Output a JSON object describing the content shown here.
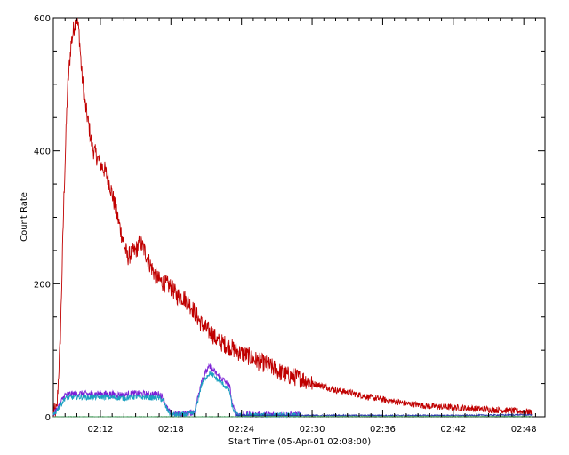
{
  "chart_data": {
    "type": "line",
    "title": "",
    "xlabel": "Start Time (05-Apr-01 02:08:00)",
    "ylabel": "Count Rate",
    "x_unit": "minutes past 02:08:00",
    "xlim": [
      0,
      41.8
    ],
    "ylim": [
      0,
      600
    ],
    "x_ticks": [
      {
        "value": 4,
        "label": "02:12"
      },
      {
        "value": 10,
        "label": "02:18"
      },
      {
        "value": 16,
        "label": "02:24"
      },
      {
        "value": 22,
        "label": "02:30"
      },
      {
        "value": 28,
        "label": "02:36"
      },
      {
        "value": 34,
        "label": "02:42"
      },
      {
        "value": 40,
        "label": "02:48"
      }
    ],
    "y_ticks": [
      {
        "value": 0,
        "label": "0"
      },
      {
        "value": 200,
        "label": "200"
      },
      {
        "value": 400,
        "label": "400"
      },
      {
        "value": 600,
        "label": "600"
      }
    ],
    "grid": false,
    "legend": "none",
    "series": [
      {
        "color": "#c00000",
        "noise": 14,
        "x": [
          0,
          0.3,
          0.6,
          0.9,
          1.2,
          1.5,
          1.8,
          2.0,
          2.2,
          2.4,
          2.7,
          3.0,
          3.3,
          3.6,
          4.0,
          4.4,
          4.8,
          5.2,
          5.6,
          6.0,
          6.3,
          6.6,
          7.0,
          7.4,
          7.8,
          8.2,
          8.6,
          9.0,
          9.5,
          10.0,
          10.5,
          11.0,
          11.5,
          12.0,
          12.5,
          13.0,
          13.5,
          14.0,
          14.5,
          15.0,
          15.5,
          16.0,
          16.5,
          17.0,
          17.5,
          18.0,
          18.5,
          19.0,
          19.5,
          20.0,
          20.5,
          21.0,
          21.5,
          22.0,
          23.0,
          24.0,
          25.0,
          26.0,
          27.0,
          28.0,
          29.0,
          30.0,
          31.0,
          32.0,
          33.0,
          34.0,
          35.0,
          36.0,
          37.0,
          38.0,
          39.0,
          40.0,
          40.7
        ],
        "y": [
          5,
          10,
          120,
          330,
          490,
          560,
          590,
          600,
          575,
          520,
          470,
          440,
          405,
          395,
          380,
          370,
          350,
          320,
          290,
          260,
          240,
          245,
          250,
          262,
          248,
          230,
          215,
          205,
          200,
          195,
          182,
          180,
          172,
          158,
          142,
          132,
          125,
          113,
          110,
          105,
          100,
          95,
          92,
          87,
          83,
          80,
          75,
          70,
          65,
          62,
          60,
          58,
          55,
          50,
          46,
          40,
          37,
          33,
          29,
          26,
          23,
          20,
          18,
          16,
          15,
          14,
          13,
          12,
          11,
          10,
          9,
          8,
          7
        ]
      },
      {
        "color": "#7a1fd6",
        "noise": 5,
        "x": [
          0,
          1,
          2,
          3,
          4,
          5,
          6,
          7,
          8,
          9,
          9.3,
          9.7,
          10,
          10.5,
          11,
          11.5,
          12,
          12.3,
          12.6,
          13.0,
          13.3,
          13.6,
          14.0,
          14.5,
          15.0,
          15.2,
          15.5,
          16,
          18,
          20,
          20.5,
          21
        ],
        "y": [
          2,
          33,
          35,
          34,
          35,
          34,
          33,
          35,
          34,
          34,
          30,
          12,
          5,
          4,
          4,
          5,
          8,
          30,
          55,
          68,
          75,
          70,
          62,
          55,
          45,
          20,
          4,
          3,
          3,
          3,
          3,
          3
        ]
      },
      {
        "color": "#1aa0c0",
        "noise": 4,
        "x": [
          0,
          1,
          2,
          3,
          4,
          5,
          6,
          7,
          8,
          9,
          9.3,
          9.7,
          10,
          10.5,
          11,
          11.5,
          12,
          12.3,
          12.6,
          13.0,
          13.3,
          13.6,
          14.0,
          14.5,
          15.0,
          15.2,
          15.5,
          16,
          18,
          20,
          20.5,
          21
        ],
        "y": [
          2,
          28,
          30,
          29,
          30,
          29,
          28,
          30,
          29,
          28,
          25,
          10,
          4,
          3,
          3,
          4,
          6,
          25,
          48,
          60,
          66,
          62,
          55,
          48,
          38,
          16,
          3,
          2,
          2,
          2,
          2,
          2
        ]
      },
      {
        "color": "#2a3aa8",
        "noise": 1,
        "x": [
          15.5,
          20,
          25,
          30,
          35,
          40,
          40.7
        ],
        "y": [
          2,
          2,
          2,
          2,
          2,
          3,
          3
        ]
      },
      {
        "color": "#4aa060",
        "noise": 0.5,
        "x": [
          0,
          15,
          16,
          40.7
        ],
        "y": [
          0,
          0,
          0.5,
          0.5
        ]
      }
    ]
  }
}
